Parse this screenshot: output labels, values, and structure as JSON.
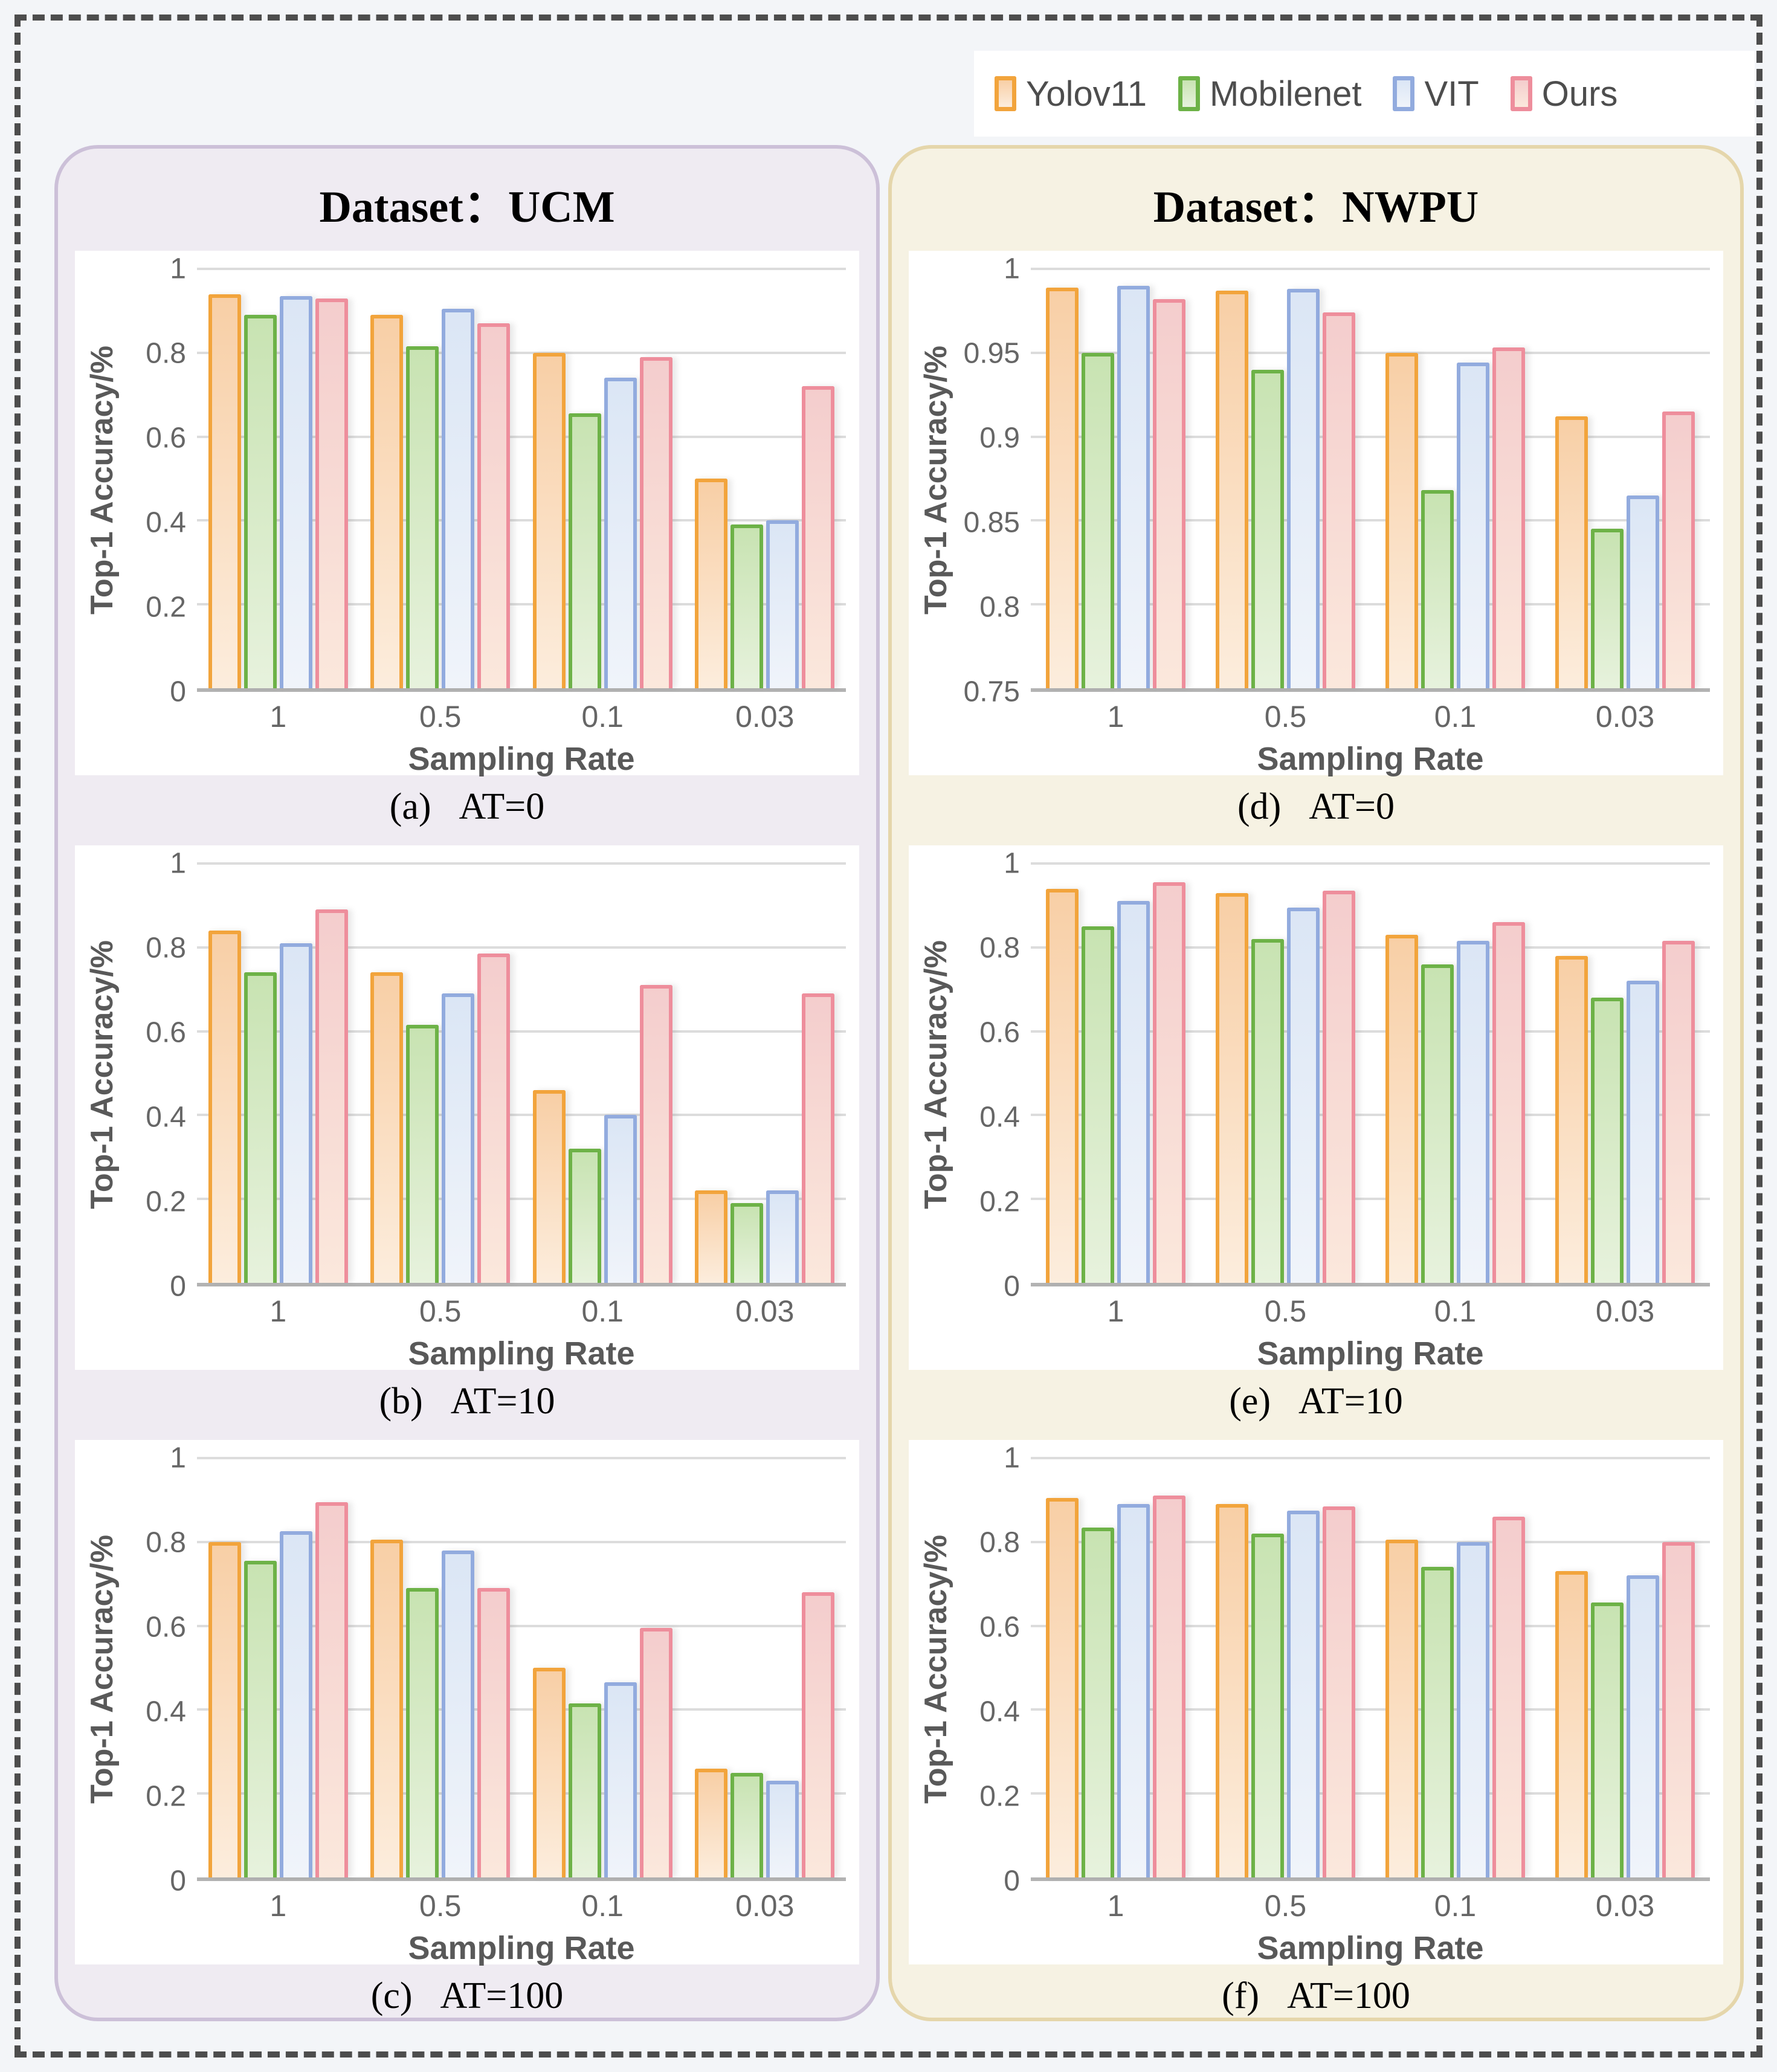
{
  "figure": {
    "background": "#F3F5F8",
    "frame_color": "#4D4D4D"
  },
  "legend": {
    "items": [
      {
        "label": "Yolov11"
      },
      {
        "label": "Mobilenet"
      },
      {
        "label": "VIT"
      },
      {
        "label": "Ours"
      }
    ]
  },
  "series_styles": {
    "Yolov11": {
      "border": "#F2A43C",
      "fill_top": "#F8CFA6",
      "fill_bottom": "#FCEDDD"
    },
    "Mobilenet": {
      "border": "#6DB247",
      "fill_top": "#C8E3B2",
      "fill_bottom": "#E7F2DD"
    },
    "VIT": {
      "border": "#92ABDE",
      "fill_top": "#DBE6F5",
      "fill_bottom": "#F0F4FA"
    },
    "Ours": {
      "border": "#EE8E9C",
      "fill_top": "#F4CDCD",
      "fill_bottom": "#FBE8DC"
    }
  },
  "panels": [
    {
      "id": "ucm",
      "title": "Dataset：UCM",
      "bg": "#EFEBF2",
      "border": "#CCC0D8"
    },
    {
      "id": "nwpu",
      "title": "Dataset：NWPU",
      "bg": "#F6F2E3",
      "border": "#E5D6AB"
    }
  ],
  "chart_data": [
    {
      "panel": "ucm",
      "caption_label": "(a)",
      "caption": "AT=0",
      "type": "bar",
      "xlabel": "Sampling Rate",
      "ylabel": "Top-1 Accuracy/%",
      "categories": [
        "1",
        "0.5",
        "0.1",
        "0.03"
      ],
      "ymin": 0,
      "ymax": 1,
      "yticks": [
        "0",
        "0.2",
        "0.4",
        "0.6",
        "0.8",
        "1"
      ],
      "grid": true,
      "legend_position": "top-right-of-figure",
      "series": [
        {
          "name": "Yolov11",
          "values": [
            0.94,
            0.89,
            0.8,
            0.5
          ]
        },
        {
          "name": "Mobilenet",
          "values": [
            0.89,
            0.815,
            0.655,
            0.39
          ]
        },
        {
          "name": "VIT",
          "values": [
            0.935,
            0.905,
            0.74,
            0.4
          ]
        },
        {
          "name": "Ours",
          "values": [
            0.93,
            0.87,
            0.79,
            0.72
          ]
        }
      ]
    },
    {
      "panel": "ucm",
      "caption_label": "(b)",
      "caption": "AT=10",
      "type": "bar",
      "xlabel": "Sampling Rate",
      "ylabel": "Top-1 Accuracy/%",
      "categories": [
        "1",
        "0.5",
        "0.1",
        "0.03"
      ],
      "ymin": 0,
      "ymax": 1,
      "yticks": [
        "0",
        "0.2",
        "0.4",
        "0.6",
        "0.8",
        "1"
      ],
      "grid": true,
      "series": [
        {
          "name": "Yolov11",
          "values": [
            0.84,
            0.74,
            0.46,
            0.22
          ]
        },
        {
          "name": "Mobilenet",
          "values": [
            0.74,
            0.615,
            0.32,
            0.19
          ]
        },
        {
          "name": "VIT",
          "values": [
            0.81,
            0.69,
            0.4,
            0.22
          ]
        },
        {
          "name": "Ours",
          "values": [
            0.89,
            0.785,
            0.71,
            0.69
          ]
        }
      ]
    },
    {
      "panel": "ucm",
      "caption_label": "(c)",
      "caption": "AT=100",
      "type": "bar",
      "xlabel": "Sampling Rate",
      "ylabel": "Top-1 Accuracy/%",
      "categories": [
        "1",
        "0.5",
        "0.1",
        "0.03"
      ],
      "ymin": 0,
      "ymax": 1,
      "yticks": [
        "0",
        "0.2",
        "0.4",
        "0.6",
        "0.8",
        "1"
      ],
      "grid": true,
      "series": [
        {
          "name": "Yolov11",
          "values": [
            0.8,
            0.805,
            0.5,
            0.26
          ]
        },
        {
          "name": "Mobilenet",
          "values": [
            0.755,
            0.69,
            0.415,
            0.25
          ]
        },
        {
          "name": "VIT",
          "values": [
            0.825,
            0.78,
            0.465,
            0.23
          ]
        },
        {
          "name": "Ours",
          "values": [
            0.895,
            0.69,
            0.595,
            0.68
          ]
        }
      ]
    },
    {
      "panel": "nwpu",
      "caption_label": "(d)",
      "caption": "AT=0",
      "type": "bar",
      "xlabel": "Sampling Rate",
      "ylabel": "Top-1 Accuracy/%",
      "categories": [
        "1",
        "0.5",
        "0.1",
        "0.03"
      ],
      "ymin": 0.75,
      "ymax": 1,
      "yticks": [
        "0.75",
        "0.8",
        "0.85",
        "0.9",
        "0.95",
        "1"
      ],
      "grid": true,
      "series": [
        {
          "name": "Yolov11",
          "values": [
            0.989,
            0.987,
            0.95,
            0.912
          ]
        },
        {
          "name": "Mobilenet",
          "values": [
            0.95,
            0.94,
            0.868,
            0.845
          ]
        },
        {
          "name": "VIT",
          "values": [
            0.99,
            0.988,
            0.944,
            0.865
          ]
        },
        {
          "name": "Ours",
          "values": [
            0.982,
            0.974,
            0.953,
            0.915
          ]
        }
      ]
    },
    {
      "panel": "nwpu",
      "caption_label": "(e)",
      "caption": "AT=10",
      "type": "bar",
      "xlabel": "Sampling Rate",
      "ylabel": "Top-1 Accuracy/%",
      "categories": [
        "1",
        "0.5",
        "0.1",
        "0.03"
      ],
      "ymin": 0,
      "ymax": 1,
      "yticks": [
        "0",
        "0.2",
        "0.4",
        "0.6",
        "0.8",
        "1"
      ],
      "grid": true,
      "series": [
        {
          "name": "Yolov11",
          "values": [
            0.94,
            0.93,
            0.83,
            0.78
          ]
        },
        {
          "name": "Mobilenet",
          "values": [
            0.85,
            0.82,
            0.76,
            0.68
          ]
        },
        {
          "name": "VIT",
          "values": [
            0.91,
            0.895,
            0.815,
            0.72
          ]
        },
        {
          "name": "Ours",
          "values": [
            0.955,
            0.935,
            0.86,
            0.815
          ]
        }
      ]
    },
    {
      "panel": "nwpu",
      "caption_label": "(f)",
      "caption": "AT=100",
      "type": "bar",
      "xlabel": "Sampling Rate",
      "ylabel": "Top-1 Accuracy/%",
      "categories": [
        "1",
        "0.5",
        "0.1",
        "0.03"
      ],
      "ymin": 0,
      "ymax": 1,
      "yticks": [
        "0",
        "0.2",
        "0.4",
        "0.6",
        "0.8",
        "1"
      ],
      "grid": true,
      "series": [
        {
          "name": "Yolov11",
          "values": [
            0.905,
            0.89,
            0.805,
            0.73
          ]
        },
        {
          "name": "Mobilenet",
          "values": [
            0.835,
            0.82,
            0.74,
            0.655
          ]
        },
        {
          "name": "VIT",
          "values": [
            0.89,
            0.875,
            0.8,
            0.72
          ]
        },
        {
          "name": "Ours",
          "values": [
            0.91,
            0.885,
            0.86,
            0.8
          ]
        }
      ]
    }
  ]
}
